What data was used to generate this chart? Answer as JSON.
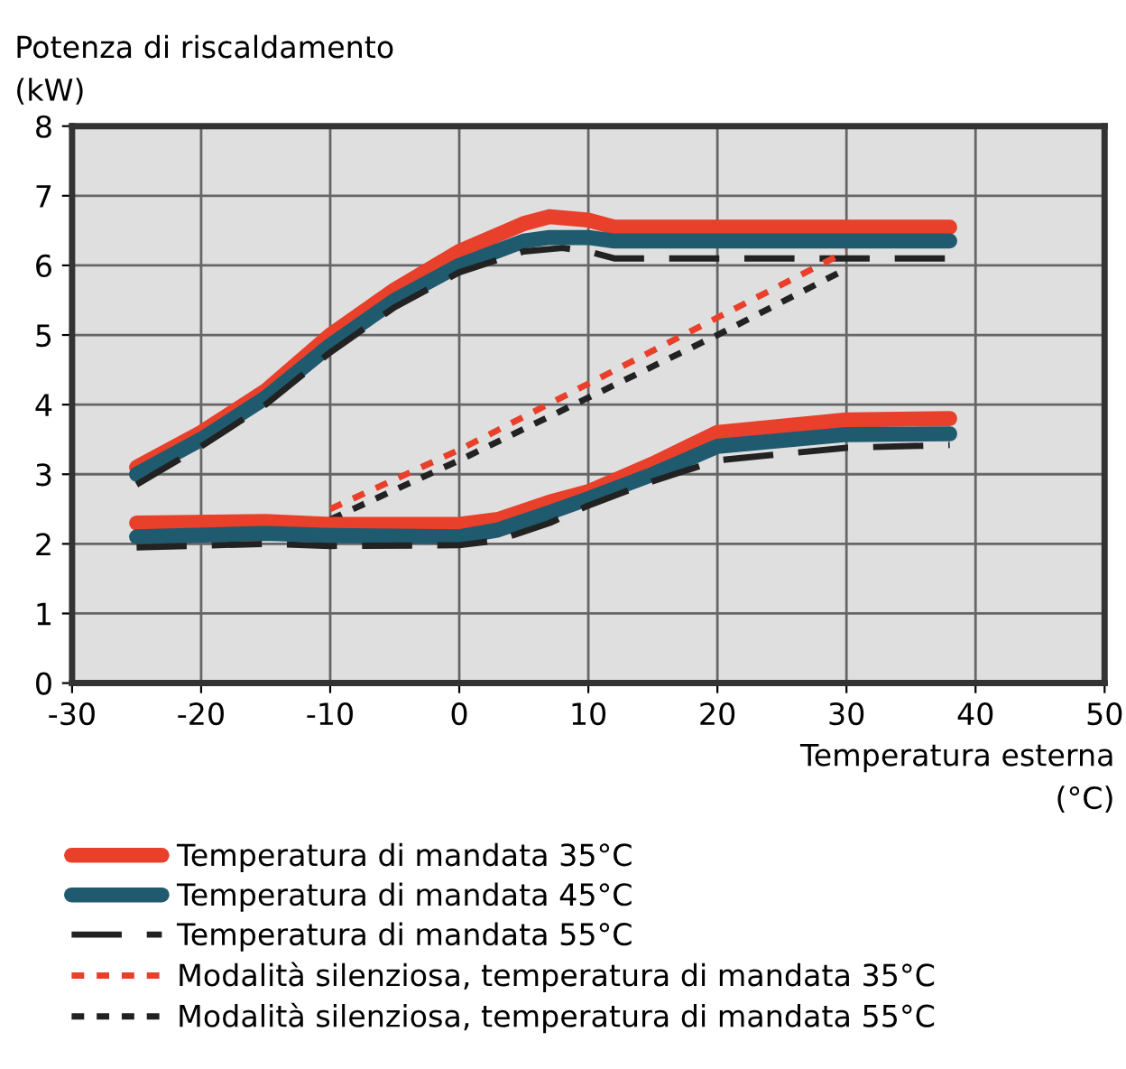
{
  "chart_data": {
    "type": "line",
    "xlabel": "Temperatura esterna\n(°C)",
    "ylabel": "Potenza di riscaldamento\n(kW)",
    "xlim": [
      -30,
      50
    ],
    "xticks": [
      -30,
      -20,
      -10,
      0,
      10,
      20,
      30,
      40,
      50
    ],
    "ylim": [
      0,
      8
    ],
    "yticks": [
      0,
      1,
      2,
      3,
      4,
      5,
      6,
      7,
      8
    ],
    "grid": true,
    "legend": "bottom",
    "marker": "none",
    "series": [
      {
        "name": "Temperatura di mandata 35°C",
        "color": "#e8402a",
        "line_style": "solid",
        "x": [
          -25,
          -20,
          -15,
          -10,
          -5,
          0,
          5,
          7,
          10,
          12,
          20,
          30,
          38
        ],
        "values": [
          3.1,
          3.6,
          4.2,
          5.0,
          5.65,
          6.2,
          6.6,
          6.7,
          6.65,
          6.55,
          6.55,
          6.55,
          6.55
        ]
      },
      {
        "name": "Temperatura di mandata 45°C",
        "color": "#1f5a6e",
        "line_style": "solid",
        "x": [
          -25,
          -20,
          -15,
          -10,
          -5,
          0,
          5,
          7,
          10,
          12,
          20,
          30,
          38
        ],
        "values": [
          3.0,
          3.5,
          4.1,
          4.85,
          5.5,
          6.0,
          6.35,
          6.4,
          6.4,
          6.35,
          6.35,
          6.35,
          6.35
        ]
      },
      {
        "name": "Temperatura di mandata 55°C",
        "color": "#222222",
        "line_style": "dashed",
        "x": [
          -25,
          -20,
          -15,
          -10,
          -5,
          0,
          5,
          8,
          10,
          12,
          20,
          30,
          38
        ],
        "values": [
          2.85,
          3.4,
          4.0,
          4.75,
          5.4,
          5.9,
          6.2,
          6.25,
          6.2,
          6.1,
          6.1,
          6.1,
          6.1
        ]
      },
      {
        "name": "Modalità silenziosa, temperatura di mandata 35°C",
        "color": "#e8402a",
        "line_style": "dotted",
        "x": [
          -10,
          0,
          10,
          20,
          30
        ],
        "values": [
          2.5,
          3.35,
          4.3,
          5.25,
          6.2
        ]
      },
      {
        "name": "Modalità silenziosa, temperatura di mandata 55°C",
        "color": "#222222",
        "line_style": "dotted",
        "x": [
          -10,
          0,
          10,
          20,
          30
        ],
        "values": [
          2.35,
          3.2,
          4.1,
          5.0,
          5.95
        ]
      },
      {
        "color": "#e8402a",
        "line_style": "solid",
        "x": [
          -25,
          -15,
          -10,
          0,
          3,
          7,
          10,
          15,
          20,
          30,
          38
        ],
        "values": [
          2.3,
          2.32,
          2.28,
          2.28,
          2.35,
          2.6,
          2.75,
          3.15,
          3.6,
          3.78,
          3.8
        ]
      },
      {
        "color": "#1f5a6e",
        "line_style": "solid",
        "x": [
          -25,
          -15,
          -10,
          0,
          3,
          7,
          10,
          15,
          20,
          30,
          38
        ],
        "values": [
          2.1,
          2.15,
          2.12,
          2.1,
          2.2,
          2.45,
          2.65,
          3.0,
          3.4,
          3.57,
          3.58
        ]
      },
      {
        "color": "#222222",
        "line_style": "dashed",
        "x": [
          -25,
          -15,
          -10,
          0,
          3,
          7,
          10,
          15,
          20,
          30,
          38
        ],
        "values": [
          1.95,
          2.0,
          1.97,
          1.98,
          2.05,
          2.3,
          2.55,
          2.9,
          3.2,
          3.38,
          3.42
        ]
      }
    ]
  }
}
